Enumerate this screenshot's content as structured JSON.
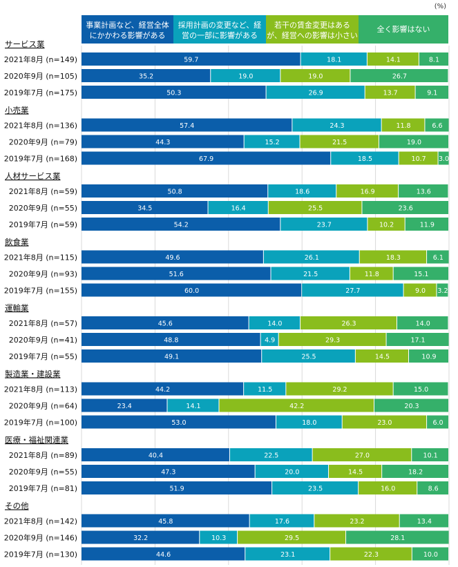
{
  "chart_data": {
    "type": "stacked-bar-horizontal",
    "unit_label": "(%)",
    "xlim": [
      0,
      100
    ],
    "series": [
      {
        "name_lines": [
          "事業計画など、経営全体",
          "にかかわる影響がある"
        ],
        "color": "#0b5eaa"
      },
      {
        "name_lines": [
          "採用計画の変更など、経",
          "営の一部に影響がある"
        ],
        "color": "#0aa2bb"
      },
      {
        "name_lines": [
          "若干の賃金変更はある",
          "が、経営への影響は小さい"
        ],
        "color": "#8abd1d"
      },
      {
        "name_lines": [
          "全く影響はない"
        ],
        "color": "#35b06a"
      }
    ],
    "groups": [
      {
        "name": "サービス業",
        "rows": [
          {
            "label": "2021年8月 (n=149)",
            "values": [
              59.7,
              18.1,
              14.1,
              8.1
            ]
          },
          {
            "label": "2020年9月 (n=105)",
            "values": [
              35.2,
              19.0,
              19.0,
              26.7
            ]
          },
          {
            "label": "2019年7月 (n=175)",
            "values": [
              50.3,
              26.9,
              13.7,
              9.1
            ]
          }
        ]
      },
      {
        "name": "小売業",
        "rows": [
          {
            "label": "2021年8月 (n=136)",
            "values": [
              57.4,
              24.3,
              11.8,
              6.6
            ]
          },
          {
            "label": "2020年9月 (n=79)",
            "values": [
              44.3,
              15.2,
              21.5,
              19.0
            ]
          },
          {
            "label": "2019年7月 (n=168)",
            "values": [
              67.9,
              18.5,
              10.7,
              3.0
            ]
          }
        ]
      },
      {
        "name": "人材サービス業",
        "rows": [
          {
            "label": "2021年8月 (n=59)",
            "values": [
              50.8,
              18.6,
              16.9,
              13.6
            ]
          },
          {
            "label": "2020年9月 (n=55)",
            "values": [
              34.5,
              16.4,
              25.5,
              23.6
            ]
          },
          {
            "label": "2019年7月 (n=59)",
            "values": [
              54.2,
              23.7,
              10.2,
              11.9
            ]
          }
        ]
      },
      {
        "name": "飲食業",
        "rows": [
          {
            "label": "2021年8月 (n=115)",
            "values": [
              49.6,
              26.1,
              18.3,
              6.1
            ]
          },
          {
            "label": "2020年9月 (n=93)",
            "values": [
              51.6,
              21.5,
              11.8,
              15.1
            ]
          },
          {
            "label": "2019年7月 (n=155)",
            "values": [
              60.0,
              27.7,
              9.0,
              3.2
            ]
          }
        ]
      },
      {
        "name": "運輸業",
        "rows": [
          {
            "label": "2021年8月 (n=57)",
            "values": [
              45.6,
              14.0,
              26.3,
              14.0
            ]
          },
          {
            "label": "2020年9月 (n=41)",
            "values": [
              48.8,
              4.9,
              29.3,
              17.1
            ]
          },
          {
            "label": "2019年7月 (n=55)",
            "values": [
              49.1,
              25.5,
              14.5,
              10.9
            ]
          }
        ]
      },
      {
        "name": "製造業・建設業",
        "rows": [
          {
            "label": "2021年8月 (n=113)",
            "values": [
              44.2,
              11.5,
              29.2,
              15.0
            ]
          },
          {
            "label": "2020年9月 (n=64)",
            "values": [
              23.4,
              14.1,
              42.2,
              20.3
            ]
          },
          {
            "label": "2019年7月 (n=100)",
            "values": [
              53.0,
              18.0,
              23.0,
              6.0
            ]
          }
        ]
      },
      {
        "name": "医療・福祉関連業",
        "rows": [
          {
            "label": "2021年8月 (n=89)",
            "values": [
              40.4,
              22.5,
              27.0,
              10.1
            ]
          },
          {
            "label": "2020年9月 (n=55)",
            "values": [
              47.3,
              20.0,
              14.5,
              18.2
            ]
          },
          {
            "label": "2019年7月 (n=81)",
            "values": [
              51.9,
              23.5,
              16.0,
              8.6
            ]
          }
        ]
      },
      {
        "name": "その他",
        "rows": [
          {
            "label": "2021年8月 (n=142)",
            "values": [
              45.8,
              17.6,
              23.2,
              13.4
            ]
          },
          {
            "label": "2020年9月 (n=146)",
            "values": [
              32.2,
              10.3,
              29.5,
              28.1
            ]
          },
          {
            "label": "2019年7月 (n=130)",
            "values": [
              44.6,
              23.1,
              22.3,
              10.0
            ]
          }
        ]
      }
    ]
  }
}
